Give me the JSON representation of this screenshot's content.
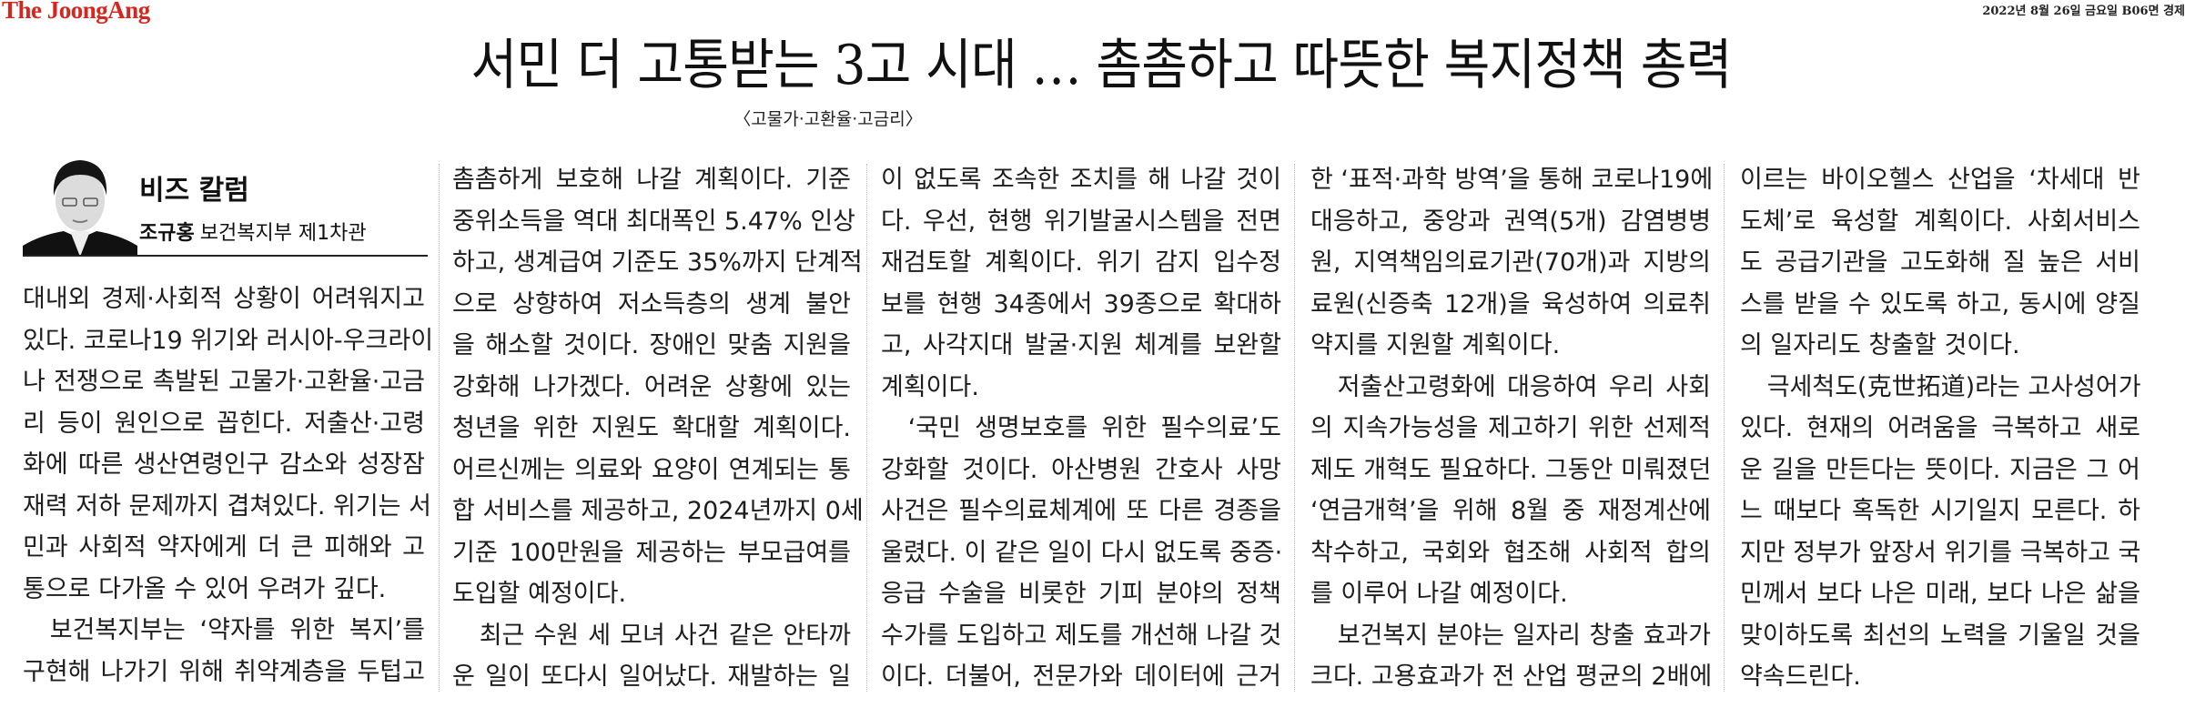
{
  "masthead": "The JoongAng",
  "dateline": "2022년 8월 26일 금요일 B06면 경제",
  "headline": "서민 더 고통받는 3고 시대 … 촘촘하고 따뜻한 복지정책 총력",
  "subhead": "〈고물가·고환율·고금리〉",
  "column_title": "비즈 칼럼",
  "author": {
    "name": "조규홍",
    "title": "보건복지부 제1차관"
  },
  "columns": [
    {
      "lines": [
        {
          "t": "대내외 경제·사회적 상황이 어려워지고"
        },
        {
          "t": "있다. 코로나19 위기와 러시아-우크라이"
        },
        {
          "t": "나 전쟁으로 촉발된 고물가·고환율·고금"
        },
        {
          "t": "리 등이 원인으로 꼽힌다. 저출산·고령"
        },
        {
          "t": "화에 따른 생산연령인구 감소와 성장잠"
        },
        {
          "t": "재력 저하 문제까지 겹쳐있다. 위기는 서"
        },
        {
          "t": "민과 사회적 약자에게 더 큰 피해와 고"
        },
        {
          "t": "통으로 다가올 수 있어 우려가 깊다.",
          "last": true
        },
        {
          "t": "보건복지부는 ‘약자를 위한 복지’를",
          "ind": true
        },
        {
          "t": "구현해 나가기 위해 취약계층을 두텁고"
        }
      ]
    },
    {
      "lines": [
        {
          "t": "촘촘하게 보호해 나갈 계획이다. 기준"
        },
        {
          "t": "중위소득을 역대 최대폭인 5.47% 인상"
        },
        {
          "t": "하고, 생계급여 기준도 35%까지 단계적"
        },
        {
          "t": "으로 상향하여 저소득층의 생계 불안"
        },
        {
          "t": "을 해소할 것이다. 장애인 맞춤 지원을"
        },
        {
          "t": "강화해 나가겠다. 어려운 상황에 있는"
        },
        {
          "t": "청년을 위한 지원도 확대할 계획이다."
        },
        {
          "t": "어르신께는 의료와 요양이 연계되는 통"
        },
        {
          "t": "합 서비스를 제공하고, 2024년까지 0세"
        },
        {
          "t": "기준 100만원을 제공하는 부모급여를"
        },
        {
          "t": "도입할 예정이다.",
          "last": true
        },
        {
          "t": "최근 수원 세 모녀 사건 같은 안타까",
          "ind": true
        },
        {
          "t": "운 일이 또다시 일어났다. 재발하는 일"
        }
      ]
    },
    {
      "lines": [
        {
          "t": "이 없도록 조속한 조치를 해 나갈 것이"
        },
        {
          "t": "다. 우선, 현행 위기발굴시스템을 전면"
        },
        {
          "t": "재검토할 계획이다. 위기 감지 입수정"
        },
        {
          "t": "보를 현행 34종에서 39종으로 확대하"
        },
        {
          "t": "고, 사각지대 발굴·지원 체계를 보완할"
        },
        {
          "t": "계획이다.",
          "last": true
        },
        {
          "t": "‘국민 생명보호를 위한 필수의료’도",
          "ind": true
        },
        {
          "t": "강화할 것이다. 아산병원 간호사 사망"
        },
        {
          "t": "사건은 필수의료체계에 또 다른 경종을"
        },
        {
          "t": "울렸다. 이 같은 일이 다시 없도록 중증·"
        },
        {
          "t": "응급 수술을 비롯한 기피 분야의 정책"
        },
        {
          "t": "수가를 도입하고 제도를 개선해 나갈 것"
        },
        {
          "t": "이다. 더불어, 전문가와 데이터에 근거"
        }
      ]
    },
    {
      "lines": [
        {
          "t": "한 ‘표적·과학 방역’을 통해 코로나19에"
        },
        {
          "t": "대응하고, 중앙과 권역(5개) 감염병병"
        },
        {
          "t": "원, 지역책임의료기관(70개)과 지방의"
        },
        {
          "t": "료원(신증축 12개)을 육성하여 의료취"
        },
        {
          "t": "약지를 지원할 계획이다.",
          "last": true
        },
        {
          "t": "저출산고령화에 대응하여 우리 사회",
          "ind": true
        },
        {
          "t": "의 지속가능성을 제고하기 위한 선제적"
        },
        {
          "t": "제도 개혁도 필요하다. 그동안 미뤄졌던"
        },
        {
          "t": "‘연금개혁’을 위해 8월 중 재정계산에"
        },
        {
          "t": "착수하고, 국회와 협조해 사회적 합의"
        },
        {
          "t": "를 이루어 나갈 예정이다.",
          "last": true
        },
        {
          "t": "보건복지 분야는 일자리 창출 효과가",
          "ind": true
        },
        {
          "t": "크다. 고용효과가 전 산업 평균의 2배에"
        }
      ]
    },
    {
      "lines": [
        {
          "t": "이르는 바이오헬스 산업을 ‘차세대 반"
        },
        {
          "t": "도체’로 육성할 계획이다. 사회서비스"
        },
        {
          "t": "도 공급기관을 고도화해 질 높은 서비"
        },
        {
          "t": "스를 받을 수 있도록 하고, 동시에 양질"
        },
        {
          "t": "의 일자리도 창출할 것이다.",
          "last": true
        },
        {
          "t": "극세척도(克世拓道)라는 고사성어가",
          "ind": true
        },
        {
          "t": "있다. 현재의 어려움을 극복하고 새로"
        },
        {
          "t": "운 길을 만든다는 뜻이다. 지금은 그 어"
        },
        {
          "t": "느 때보다 혹독한 시기일지 모른다. 하"
        },
        {
          "t": "지만 정부가 앞장서 위기를 극복하고 국"
        },
        {
          "t": "민께서 보다 나은 미래, 보다 나은 삶을"
        },
        {
          "t": "맞이하도록 최선의 노력을 기울일 것을"
        },
        {
          "t": "약속드린다.",
          "last": true
        }
      ]
    }
  ],
  "colors": {
    "masthead": "#d7261e",
    "text": "#1d1d1d"
  },
  "icons": {
    "photo": "author-portrait"
  }
}
